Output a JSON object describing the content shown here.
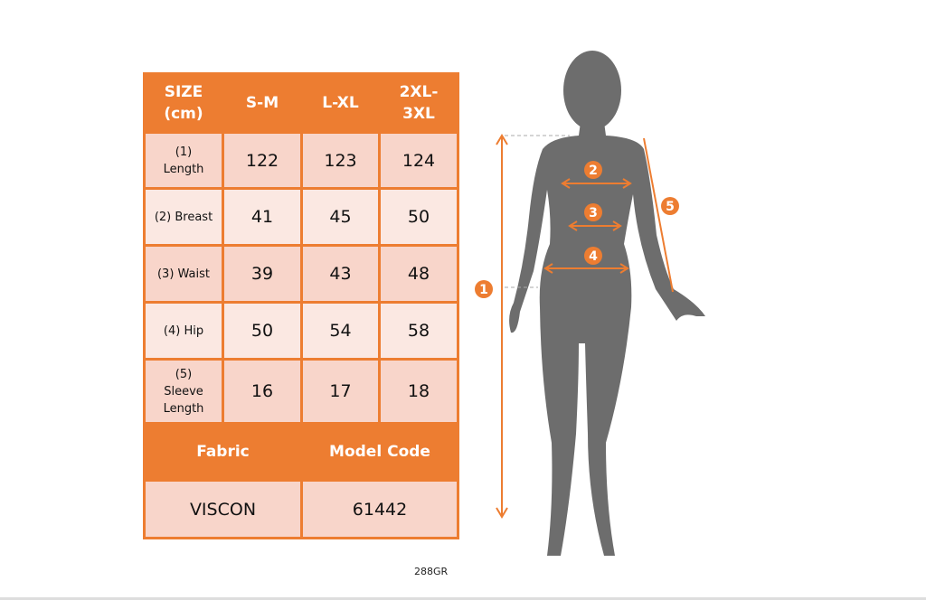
{
  "table": {
    "header": [
      "SIZE (cm)",
      "S-M",
      "L-XL",
      "2XL-3XL"
    ],
    "header_lines": [
      [
        "SIZE",
        "(cm)"
      ],
      [
        "S-M"
      ],
      [
        "L-XL"
      ],
      [
        "2XL-",
        "3XL"
      ]
    ],
    "rows": [
      {
        "label_lines": [
          "(1)",
          "Length"
        ],
        "values": [
          "122",
          "123",
          "124"
        ]
      },
      {
        "label_lines": [
          "(2) Breast"
        ],
        "values": [
          "41",
          "45",
          "50"
        ]
      },
      {
        "label_lines": [
          "(3) Waist"
        ],
        "values": [
          "39",
          "43",
          "48"
        ]
      },
      {
        "label_lines": [
          "(4) Hip"
        ],
        "values": [
          "50",
          "54",
          "58"
        ]
      },
      {
        "label_lines": [
          "(5)",
          "Sleeve",
          "Length"
        ],
        "values": [
          "16",
          "17",
          "18"
        ]
      }
    ],
    "footer_header": [
      "Fabric",
      "Model Code"
    ],
    "footer_values": [
      "VISCON",
      "61442"
    ]
  },
  "figure": {
    "markers": [
      "1",
      "2",
      "3",
      "4",
      "5"
    ]
  },
  "code_label": "288GR",
  "colors": {
    "accent": "#ed7d31",
    "row_dark": "#f8d5ca",
    "row_light": "#fbe8e2",
    "silhouette": "#6d6d6d"
  }
}
